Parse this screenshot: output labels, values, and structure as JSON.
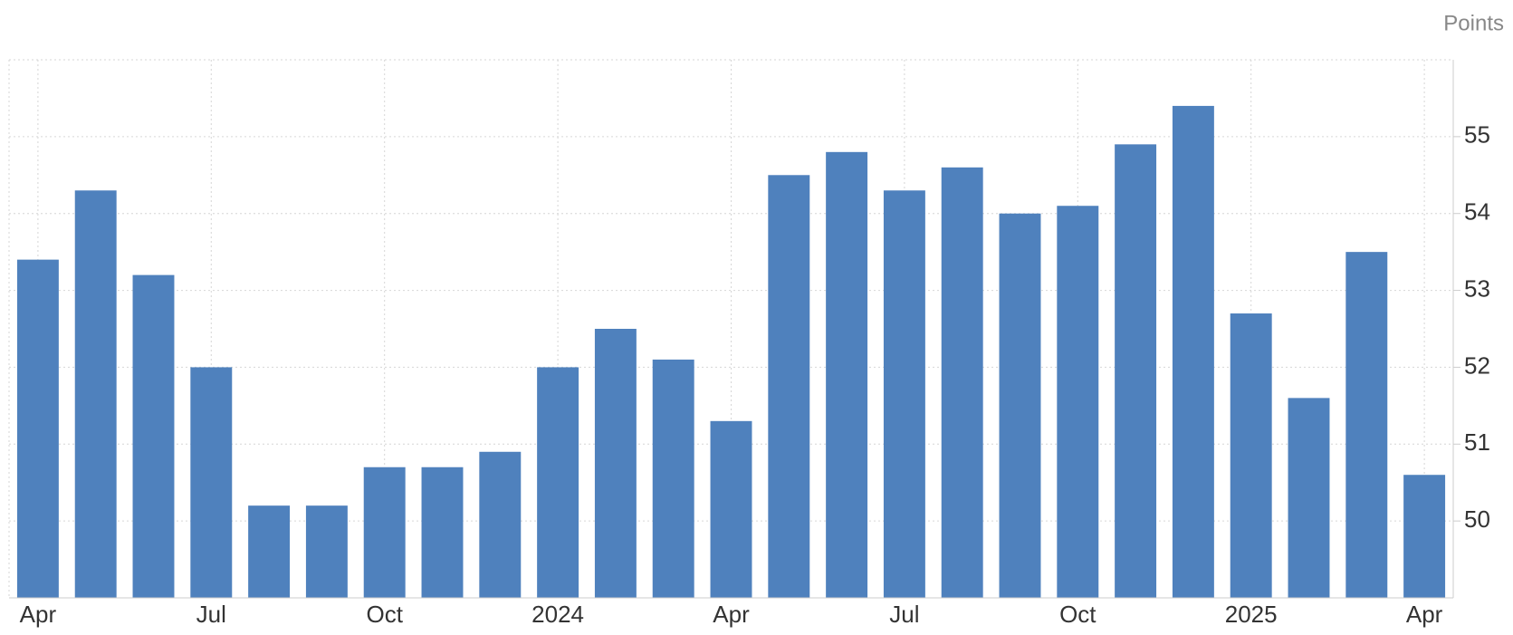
{
  "chart_data": {
    "type": "bar",
    "unit": "Points",
    "categories": [
      "Apr",
      null,
      null,
      "Jul",
      null,
      null,
      "Oct",
      null,
      null,
      "2024",
      null,
      null,
      "Apr",
      null,
      null,
      "Jul",
      null,
      null,
      "Oct",
      null,
      null,
      "2025",
      null,
      null,
      "Apr"
    ],
    "values": [
      53.4,
      54.3,
      53.2,
      52.0,
      50.2,
      50.2,
      50.7,
      50.7,
      50.9,
      52.0,
      52.5,
      52.1,
      51.3,
      54.5,
      54.8,
      54.3,
      54.6,
      54.0,
      54.1,
      54.9,
      55.4,
      52.7,
      51.6,
      53.5,
      50.6
    ],
    "color": "#4f81bd",
    "ylim": [
      49,
      56
    ],
    "yticks": [
      50,
      51,
      52,
      53,
      54,
      55
    ],
    "grid": true
  }
}
